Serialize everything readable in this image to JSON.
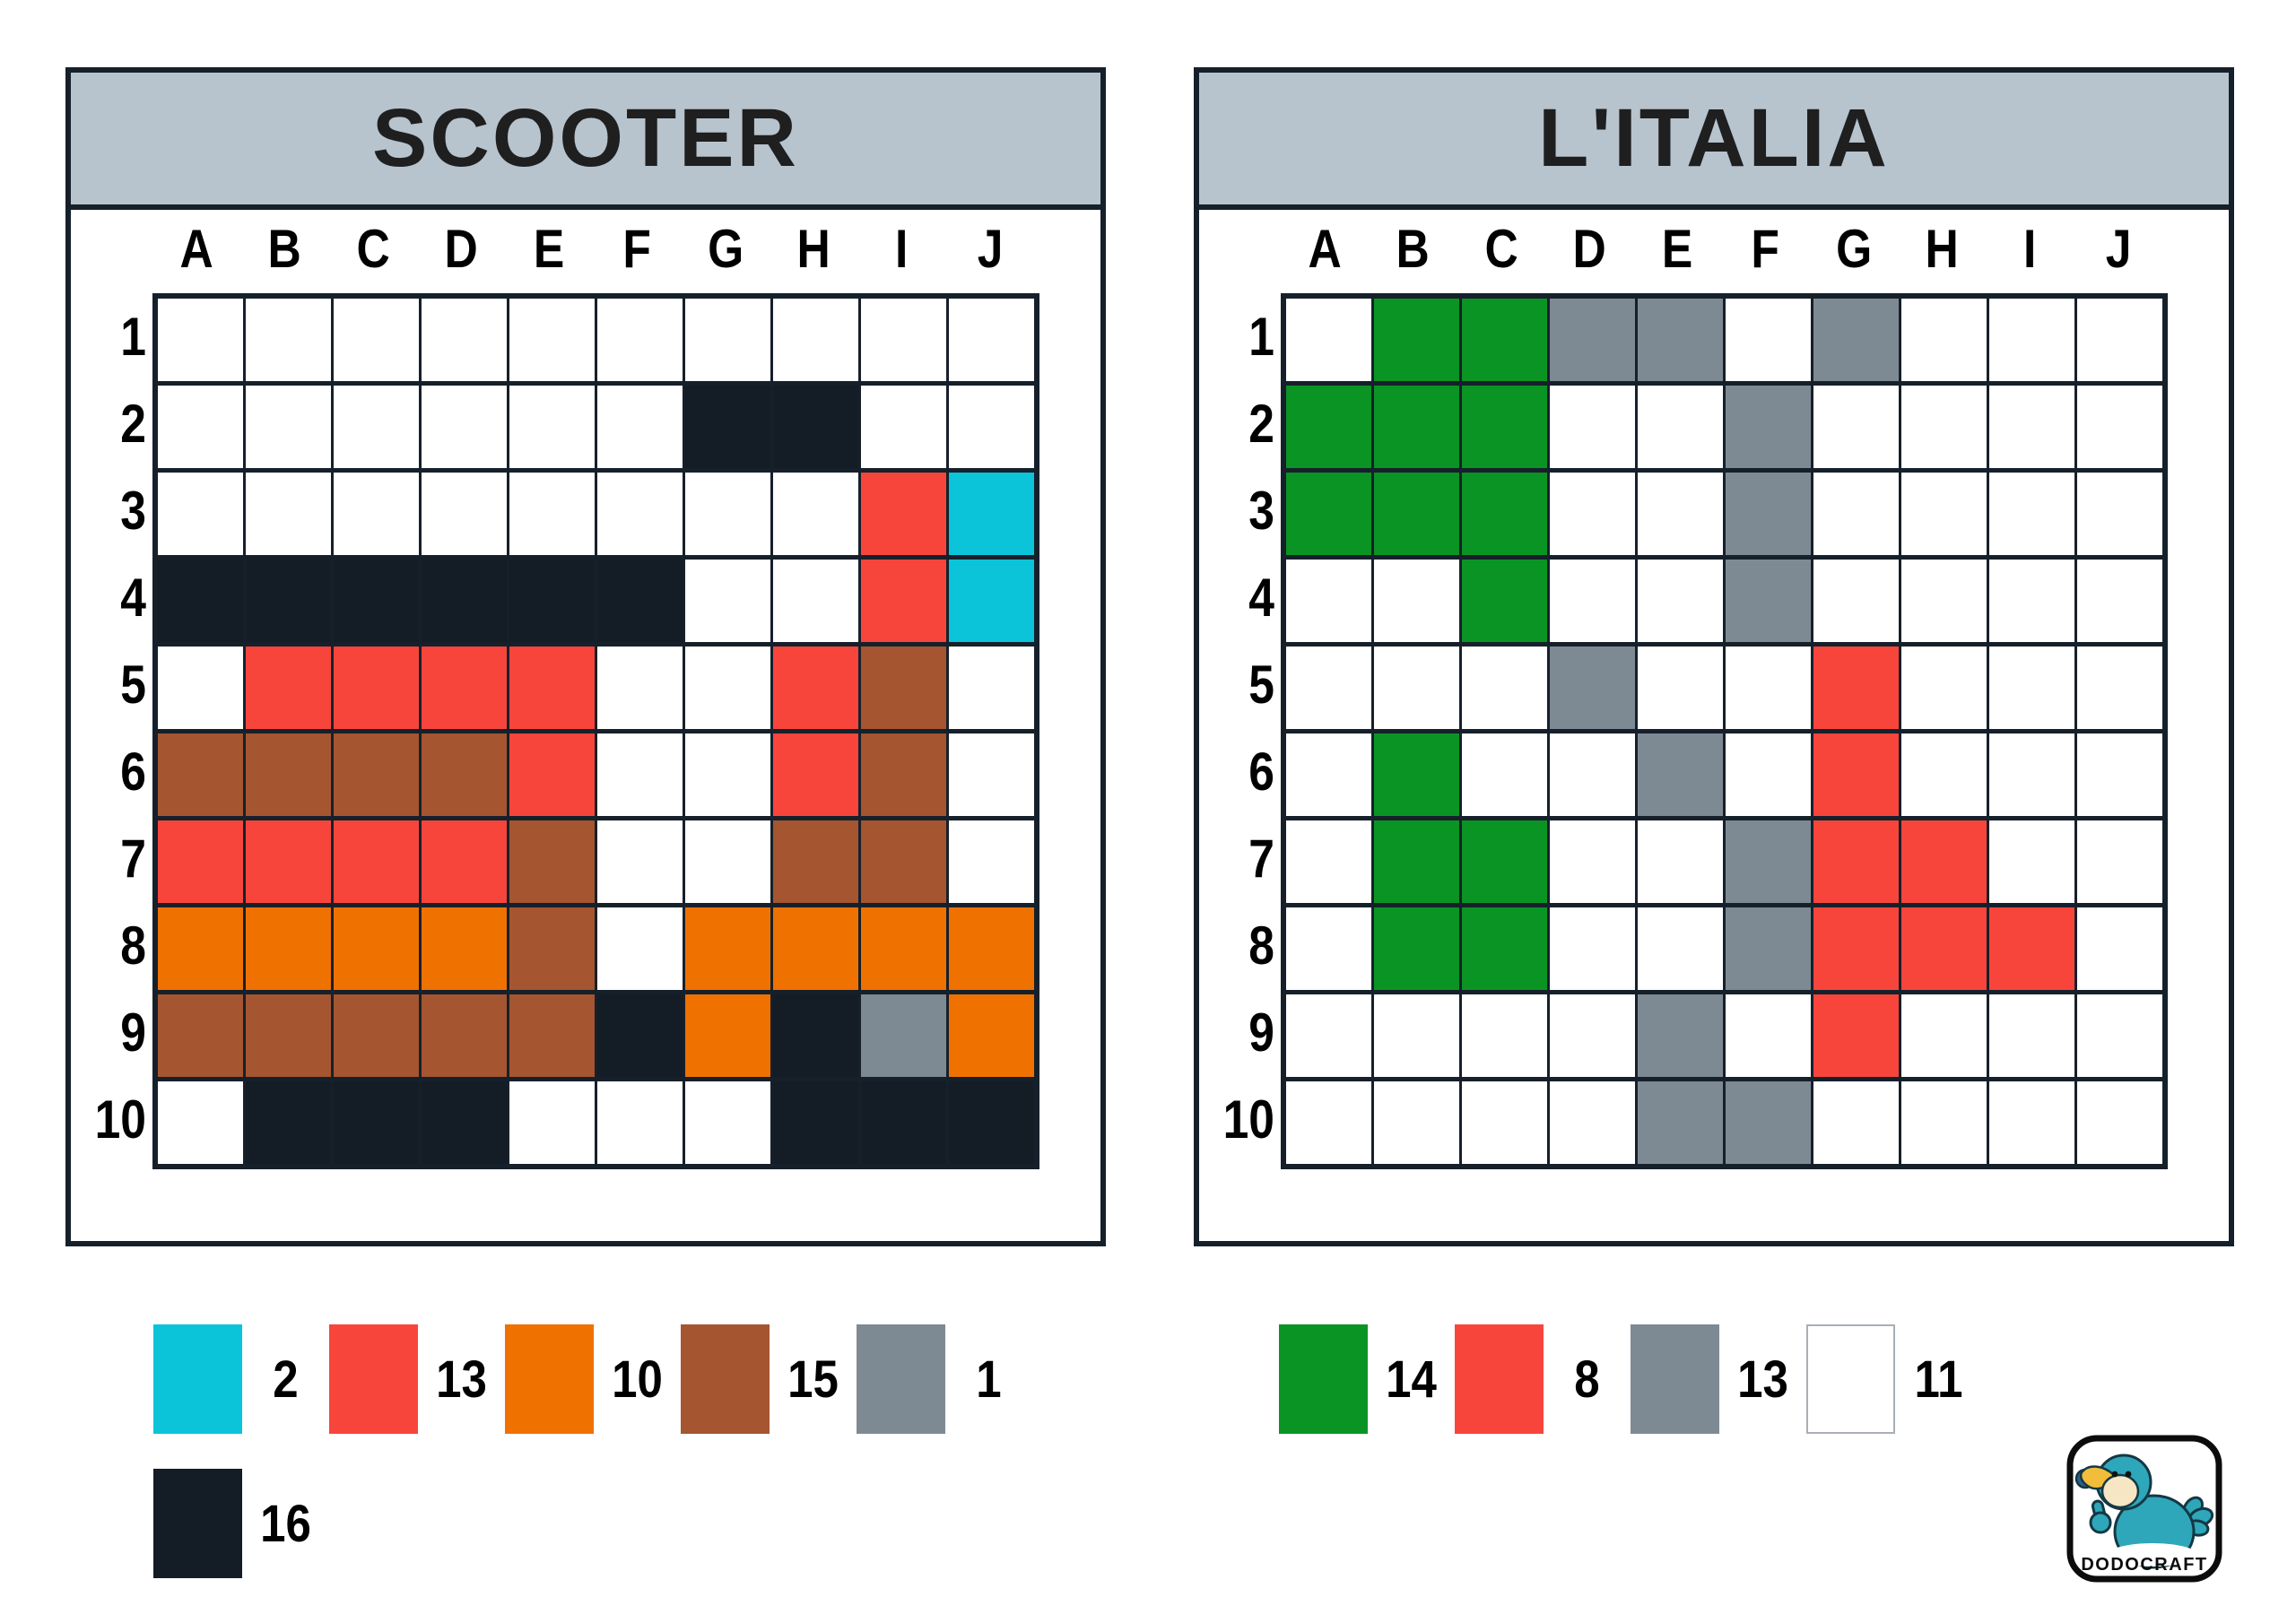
{
  "colors": {
    "white": "#ffffff",
    "cyan": "#0bc4da",
    "red": "#f8453c",
    "orange": "#ef7100",
    "brown": "#a5552f",
    "gray": "#7e8a93",
    "black": "#141c26",
    "green": "#0a9424",
    "header_bg": "#b7c3cd",
    "grid_line": "#16202b"
  },
  "cell_color_key": {
    ".": "white",
    "K": "black",
    "R": "red",
    "C": "cyan",
    "O": "orange",
    "B": "brown",
    "G": "gray",
    "N": "green"
  },
  "grid": {
    "columns": [
      "A",
      "B",
      "C",
      "D",
      "E",
      "F",
      "G",
      "H",
      "I",
      "J"
    ],
    "rows": [
      "1",
      "2",
      "3",
      "4",
      "5",
      "6",
      "7",
      "8",
      "9",
      "10"
    ]
  },
  "panels": [
    {
      "id": "scooter",
      "title": "SCOOTER",
      "cells": [
        "..........",
        "......KK..",
        "........RC",
        "KKKKKK..RC",
        ".RRRR..RB.",
        "BBBBR..RB.",
        "RRRRB..BB.",
        "OOOOB.OOOO",
        "BBBBBKOKGO",
        ".KKK...KKK"
      ],
      "legend_rows": [
        [
          {
            "color": "cyan",
            "count": "2"
          },
          {
            "color": "red",
            "count": "13"
          },
          {
            "color": "orange",
            "count": "10"
          },
          {
            "color": "brown",
            "count": "15"
          },
          {
            "color": "gray",
            "count": "1"
          }
        ],
        [
          {
            "color": "black",
            "count": "16"
          }
        ]
      ]
    },
    {
      "id": "italia",
      "title": "L'ITALIA",
      "cells": [
        ".NNGG.G...",
        "NNN..G....",
        "NNN..G....",
        "..N..G....",
        "...G..R...",
        ".N..G.R...",
        ".NN..GRR..",
        ".NN..GRRR.",
        "....G.R...",
        "....GG...."
      ],
      "legend_rows": [
        [
          {
            "color": "green",
            "count": "14"
          },
          {
            "color": "red",
            "count": "8"
          },
          {
            "color": "gray",
            "count": "13"
          },
          {
            "color": "white",
            "count": "11"
          }
        ]
      ]
    }
  ],
  "logo": {
    "text": "DODOCRAFT"
  }
}
